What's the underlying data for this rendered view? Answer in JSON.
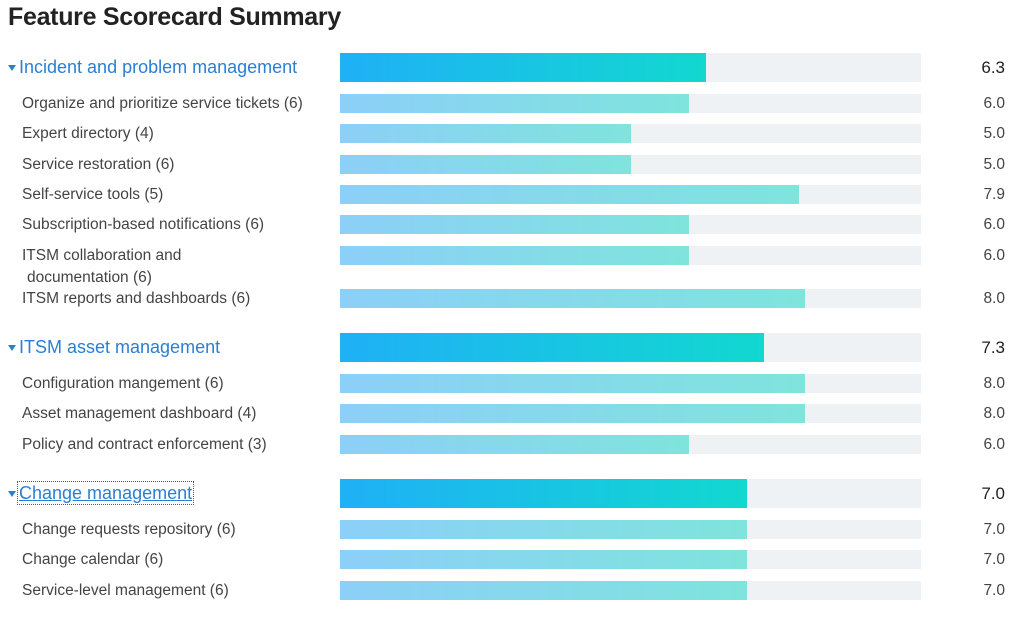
{
  "chart_data": {
    "type": "bar",
    "orientation": "horizontal",
    "title": "Feature Scorecard Summary",
    "xlim": [
      0,
      10
    ],
    "grid": false,
    "groups": [
      {
        "name": "Incident and problem management",
        "value": 6.3,
        "value_label": "6.3",
        "items": [
          {
            "label": "Organize and prioritize service tickets (6)",
            "value": 6.0,
            "value_label": "6.0"
          },
          {
            "label": "Expert directory (4)",
            "value": 5.0,
            "value_label": "5.0"
          },
          {
            "label": "Service restoration (6)",
            "value": 5.0,
            "value_label": "5.0"
          },
          {
            "label": "Self-service tools (5)",
            "value": 7.9,
            "value_label": "7.9"
          },
          {
            "label": "Subscription-based notifications (6)",
            "value": 6.0,
            "value_label": "6.0"
          },
          {
            "label": "ITSM collaboration and",
            "label_cont": "documentation (6)",
            "value": 6.0,
            "value_label": "6.0"
          },
          {
            "label": "ITSM reports and dashboards (6)",
            "value": 8.0,
            "value_label": "8.0"
          }
        ]
      },
      {
        "name": "ITSM asset management",
        "value": 7.3,
        "value_label": "7.3",
        "items": [
          {
            "label": "Configuration mangement (6)",
            "value": 8.0,
            "value_label": "8.0"
          },
          {
            "label": "Asset management dashboard (4)",
            "value": 8.0,
            "value_label": "8.0"
          },
          {
            "label": "Policy and contract enforcement (3)",
            "value": 6.0,
            "value_label": "6.0"
          }
        ]
      },
      {
        "name": "Change management",
        "value": 7.0,
        "value_label": "7.0",
        "focused": true,
        "items": [
          {
            "label": "Change requests repository (6)",
            "value": 7.0,
            "value_label": "7.0"
          },
          {
            "label": "Change calendar (6)",
            "value": 7.0,
            "value_label": "7.0"
          },
          {
            "label": "Service-level management (6)",
            "value": 7.0,
            "value_label": "7.0"
          }
        ]
      }
    ]
  },
  "colors": {
    "group_label": "#2a7fd4",
    "group_bar_start": "#1fb0f6",
    "group_bar_end": "#12d8d0",
    "item_bar_start": "#8ccff8",
    "item_bar_end": "#7fe4dc",
    "track": "#eef2f5"
  },
  "icons": {
    "group_toggle": "caret-down-icon"
  }
}
